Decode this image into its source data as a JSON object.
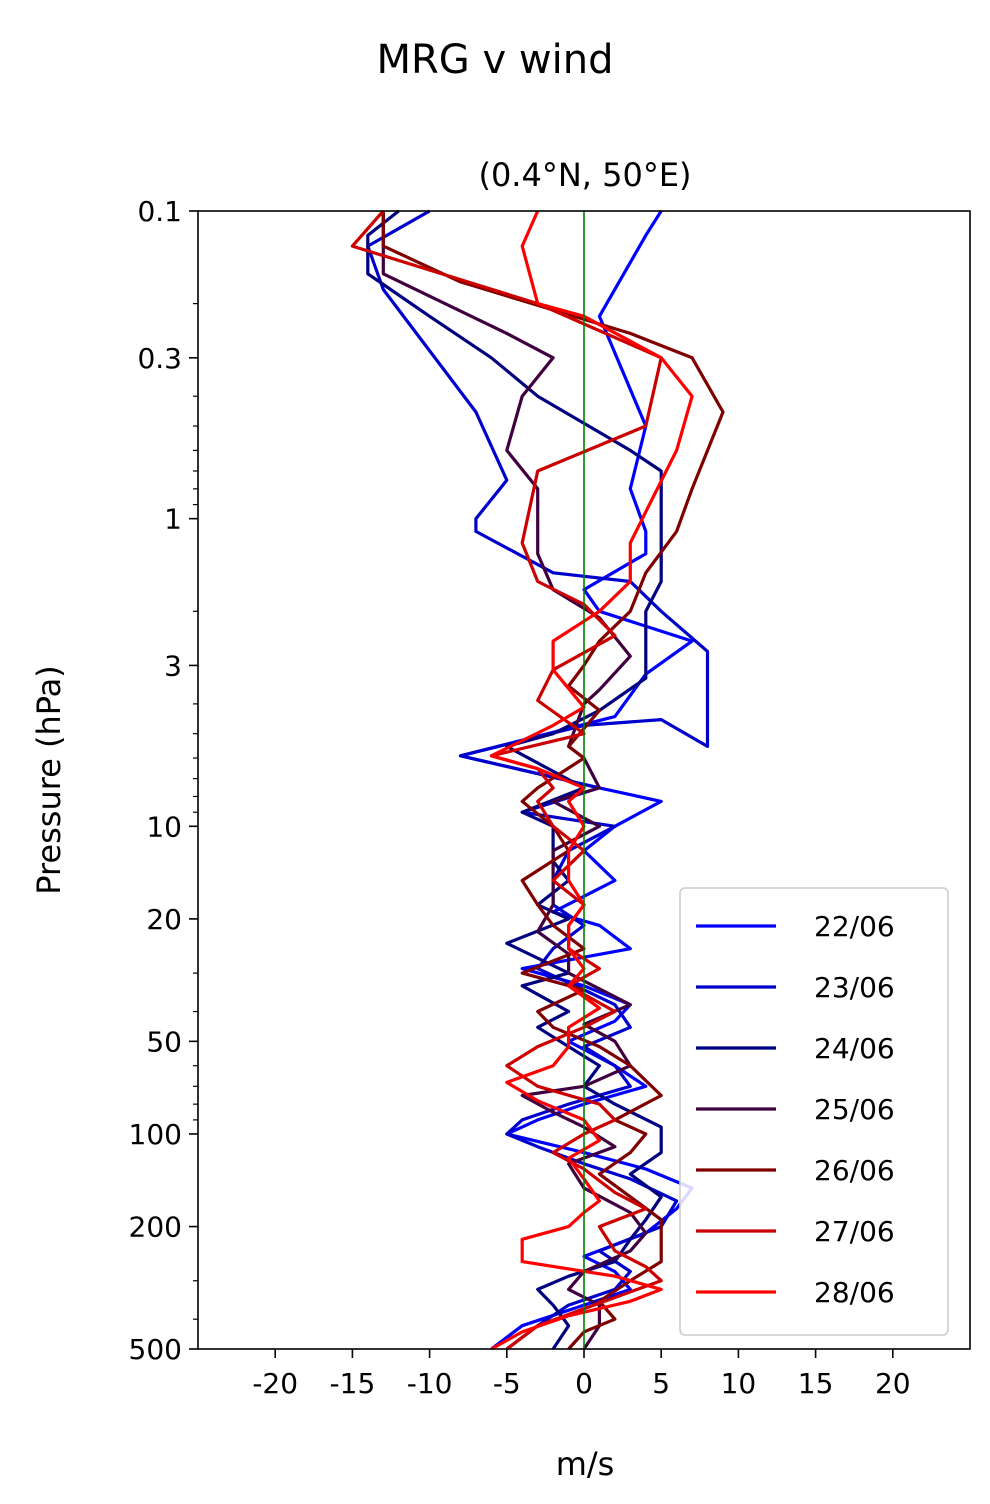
{
  "figure": {
    "suptitle": "MRG v wind",
    "subtitle": "(0.4°N, 50°E)"
  },
  "chart_data": {
    "type": "line",
    "title": "(0.4°N, 50°E)",
    "xlabel": "m/s",
    "ylabel": "Pressure (hPa)",
    "xlim": [
      -25,
      25
    ],
    "ylim": [
      500,
      0.1
    ],
    "y_scale": "log",
    "x_ticks": [
      -20,
      -15,
      -10,
      -5,
      0,
      5,
      10,
      15,
      20
    ],
    "x_tick_labels": [
      "-20",
      "-15",
      "-10",
      "-5",
      "0",
      "5",
      "10",
      "15",
      "20"
    ],
    "y_ticks": [
      0.1,
      0.3,
      1,
      3,
      10,
      20,
      50,
      100,
      200,
      500
    ],
    "y_tick_labels": [
      "0.1",
      "0.3",
      "1",
      "3",
      "10",
      "20",
      "50",
      "100",
      "200",
      "500"
    ],
    "zero_line_color": "#008000",
    "legend": "lower-right",
    "grid": false,
    "series": [
      {
        "name": "22/06",
        "color": "#0000ff",
        "points": [
          [
            -6,
            500
          ],
          [
            -4,
            420
          ],
          [
            0,
            360
          ],
          [
            3,
            320
          ],
          [
            2,
            280
          ],
          [
            0,
            250
          ],
          [
            4,
            210
          ],
          [
            6,
            175
          ],
          [
            7,
            150
          ],
          [
            4,
            130
          ],
          [
            0,
            115
          ],
          [
            -5,
            100
          ],
          [
            -3,
            90
          ],
          [
            0,
            80
          ],
          [
            4,
            70
          ],
          [
            2,
            60
          ],
          [
            -1,
            50
          ],
          [
            2,
            43
          ],
          [
            3,
            38
          ],
          [
            0,
            33
          ],
          [
            -4,
            29
          ],
          [
            3,
            25
          ],
          [
            1,
            21
          ],
          [
            -2,
            19
          ],
          [
            2,
            15
          ],
          [
            0,
            12
          ],
          [
            2,
            10
          ],
          [
            5,
            8.3
          ],
          [
            1,
            7.5
          ],
          [
            -8,
            5.9
          ],
          [
            2,
            4.4
          ],
          [
            4,
            3.2
          ],
          [
            7,
            2.5
          ],
          [
            1,
            2.0
          ],
          [
            0,
            1.7
          ],
          [
            4,
            1.3
          ],
          [
            4,
            1.1
          ],
          [
            3,
            0.8
          ],
          [
            4,
            0.5
          ],
          [
            1,
            0.22
          ],
          [
            4,
            0.12
          ],
          [
            5,
            0.1
          ]
        ]
      },
      {
        "name": "23/06",
        "color": "#0000cc",
        "points": [
          [
            -5,
            500
          ],
          [
            -3,
            420
          ],
          [
            -1,
            360
          ],
          [
            2,
            320
          ],
          [
            3,
            280
          ],
          [
            1,
            240
          ],
          [
            5,
            200
          ],
          [
            6,
            165
          ],
          [
            3,
            140
          ],
          [
            0,
            125
          ],
          [
            -3,
            110
          ],
          [
            -5,
            100
          ],
          [
            -4,
            90
          ],
          [
            -1,
            80
          ],
          [
            3,
            70
          ],
          [
            2,
            60
          ],
          [
            0,
            52
          ],
          [
            3,
            45
          ],
          [
            2,
            38
          ],
          [
            0,
            34
          ],
          [
            -3,
            29
          ],
          [
            -2,
            25
          ],
          [
            0,
            21
          ],
          [
            -2,
            18
          ],
          [
            -2,
            15
          ],
          [
            -1,
            12
          ],
          [
            2,
            10
          ],
          [
            -4,
            9
          ],
          [
            1,
            7.5
          ],
          [
            -8,
            5.9
          ],
          [
            0,
            4.7
          ],
          [
            5,
            4.5
          ],
          [
            8,
            5.5
          ],
          [
            8,
            2.7
          ],
          [
            5,
            2.0
          ],
          [
            3,
            1.6
          ],
          [
            -2,
            1.5
          ],
          [
            -7,
            1.1
          ],
          [
            -7,
            1.0
          ],
          [
            -5,
            0.75
          ],
          [
            -7,
            0.45
          ],
          [
            -13,
            0.18
          ],
          [
            -14,
            0.13
          ],
          [
            -10,
            0.1
          ]
        ]
      },
      {
        "name": "24/06",
        "color": "#000080",
        "points": [
          [
            -2,
            500
          ],
          [
            -1,
            420
          ],
          [
            -2,
            360
          ],
          [
            -3,
            320
          ],
          [
            -1,
            290
          ],
          [
            2,
            260
          ],
          [
            3,
            220
          ],
          [
            4,
            190
          ],
          [
            5,
            160
          ],
          [
            3,
            135
          ],
          [
            5,
            115
          ],
          [
            5,
            95
          ],
          [
            2,
            80
          ],
          [
            0,
            70
          ],
          [
            1,
            60
          ],
          [
            -1,
            52
          ],
          [
            -3,
            45
          ],
          [
            -1,
            40
          ],
          [
            -4,
            33
          ],
          [
            -1,
            30
          ],
          [
            -5,
            24
          ],
          [
            -1,
            20
          ],
          [
            -3,
            18
          ],
          [
            -1,
            15
          ],
          [
            -2,
            13
          ],
          [
            -2,
            10
          ],
          [
            -4,
            9
          ],
          [
            0,
            7.5
          ],
          [
            -5,
            5.5
          ],
          [
            -2,
            5
          ],
          [
            1,
            4.2
          ],
          [
            4,
            3.3
          ],
          [
            4,
            2.5
          ],
          [
            4,
            2.0
          ],
          [
            5,
            1.6
          ],
          [
            5,
            1.0
          ],
          [
            5,
            0.7
          ],
          [
            3,
            0.6
          ],
          [
            -3,
            0.4
          ],
          [
            -6,
            0.3
          ],
          [
            -10,
            0.22
          ],
          [
            -14,
            0.16
          ],
          [
            -14,
            0.12
          ],
          [
            -12,
            0.1
          ]
        ]
      },
      {
        "name": "25/06",
        "color": "#400040",
        "points": [
          [
            0,
            500
          ],
          [
            1,
            420
          ],
          [
            1,
            360
          ],
          [
            -1,
            320
          ],
          [
            0,
            280
          ],
          [
            3,
            240
          ],
          [
            4,
            210
          ],
          [
            3,
            180
          ],
          [
            0,
            150
          ],
          [
            -1,
            125
          ],
          [
            2,
            110
          ],
          [
            0,
            95
          ],
          [
            -2,
            85
          ],
          [
            -4,
            75
          ],
          [
            0,
            70
          ],
          [
            3,
            60
          ],
          [
            2,
            50
          ],
          [
            0,
            44
          ],
          [
            3,
            38
          ],
          [
            -1,
            30
          ],
          [
            -1,
            26
          ],
          [
            -3,
            22
          ],
          [
            -2,
            18
          ],
          [
            -2,
            15
          ],
          [
            -2,
            12
          ],
          [
            1,
            10
          ],
          [
            -2,
            8.3
          ],
          [
            1,
            7.5
          ],
          [
            0,
            6
          ],
          [
            -1,
            5.5
          ],
          [
            0,
            4
          ],
          [
            1,
            3.6
          ],
          [
            3,
            2.8
          ],
          [
            1,
            2.1
          ],
          [
            -2,
            1.7
          ],
          [
            -3,
            1.3
          ],
          [
            -3,
            0.8
          ],
          [
            -5,
            0.6
          ],
          [
            -4,
            0.4
          ],
          [
            -2,
            0.3
          ],
          [
            -5,
            0.25
          ],
          [
            -13,
            0.16
          ],
          [
            -13,
            0.12
          ],
          [
            -13,
            0.1
          ]
        ]
      },
      {
        "name": "26/06",
        "color": "#800000",
        "points": [
          [
            -1,
            500
          ],
          [
            0,
            440
          ],
          [
            2,
            400
          ],
          [
            1,
            350
          ],
          [
            3,
            300
          ],
          [
            5,
            260
          ],
          [
            5,
            220
          ],
          [
            5,
            190
          ],
          [
            3,
            160
          ],
          [
            1,
            135
          ],
          [
            3,
            115
          ],
          [
            4,
            100
          ],
          [
            2,
            90
          ],
          [
            5,
            75
          ],
          [
            3,
            60
          ],
          [
            1,
            52
          ],
          [
            -2,
            45
          ],
          [
            -3,
            40
          ],
          [
            0,
            34
          ],
          [
            -4,
            30
          ],
          [
            0,
            25
          ],
          [
            -2,
            21
          ],
          [
            -3,
            18
          ],
          [
            -4,
            15
          ],
          [
            -1,
            12
          ],
          [
            -2,
            10
          ],
          [
            -4,
            8.3
          ],
          [
            -3,
            7.5
          ],
          [
            0,
            6
          ],
          [
            -1,
            5.5
          ],
          [
            1,
            4.2
          ],
          [
            -1,
            3.5
          ],
          [
            0,
            3.0
          ],
          [
            1,
            2.5
          ],
          [
            3,
            2
          ],
          [
            4,
            1.5
          ],
          [
            6,
            1.1
          ],
          [
            7,
            0.8
          ],
          [
            9,
            0.45
          ],
          [
            7,
            0.3
          ],
          [
            3,
            0.25
          ],
          [
            -8,
            0.17
          ],
          [
            -13,
            0.13
          ],
          [
            -13,
            0.1
          ]
        ]
      },
      {
        "name": "27/06",
        "color": "#cc0000",
        "points": [
          [
            -5,
            500
          ],
          [
            -3,
            420
          ],
          [
            0,
            370
          ],
          [
            2,
            340
          ],
          [
            5,
            300
          ],
          [
            4,
            270
          ],
          [
            2,
            240
          ],
          [
            1,
            200
          ],
          [
            4,
            175
          ],
          [
            2,
            155
          ],
          [
            0,
            130
          ],
          [
            -2,
            115
          ],
          [
            0,
            100
          ],
          [
            2,
            90
          ],
          [
            1,
            80
          ],
          [
            -3,
            70
          ],
          [
            -5,
            60
          ],
          [
            -3,
            52
          ],
          [
            0,
            45
          ],
          [
            2,
            40
          ],
          [
            -1,
            33
          ],
          [
            1,
            29
          ],
          [
            -1,
            25
          ],
          [
            -1,
            21
          ],
          [
            0,
            18
          ],
          [
            -2,
            15
          ],
          [
            0,
            12
          ],
          [
            -2,
            10
          ],
          [
            -3,
            8.3
          ],
          [
            -2,
            7.5
          ],
          [
            -3,
            6.5
          ],
          [
            -6,
            5.9
          ],
          [
            0,
            5
          ],
          [
            -3,
            3.9
          ],
          [
            -2,
            3.1
          ],
          [
            2,
            2.4
          ],
          [
            0,
            1.9
          ],
          [
            -3,
            1.6
          ],
          [
            -4,
            1.2
          ],
          [
            -3,
            0.7
          ],
          [
            4,
            0.5
          ],
          [
            5,
            0.3
          ],
          [
            -3,
            0.2
          ],
          [
            -15,
            0.13
          ],
          [
            -13,
            0.1
          ]
        ]
      },
      {
        "name": "28/06",
        "color": "#ff0000",
        "points": [
          [
            -6,
            500
          ],
          [
            -4,
            440
          ],
          [
            -1,
            390
          ],
          [
            3,
            350
          ],
          [
            5,
            320
          ],
          [
            2,
            290
          ],
          [
            -4,
            260
          ],
          [
            -4,
            220
          ],
          [
            -1,
            200
          ],
          [
            0,
            180
          ],
          [
            1,
            165
          ],
          [
            0,
            140
          ],
          [
            -1,
            120
          ],
          [
            1,
            105
          ],
          [
            0,
            90
          ],
          [
            -3,
            78
          ],
          [
            -5,
            68
          ],
          [
            -2,
            60
          ],
          [
            -1,
            52
          ],
          [
            -1,
            45
          ],
          [
            1,
            39
          ],
          [
            -1,
            33
          ],
          [
            0,
            29
          ],
          [
            -1,
            25
          ],
          [
            -1,
            21
          ],
          [
            0,
            18
          ],
          [
            -1,
            15
          ],
          [
            -1,
            12
          ],
          [
            0,
            10
          ],
          [
            -1,
            8.3
          ],
          [
            0,
            7.5
          ],
          [
            -3,
            6.5
          ],
          [
            -6,
            5.9
          ],
          [
            -2,
            4.7
          ],
          [
            0,
            4.1
          ],
          [
            -2,
            3.1
          ],
          [
            -2,
            2.5
          ],
          [
            1,
            2.0
          ],
          [
            3,
            1.6
          ],
          [
            3,
            1.2
          ],
          [
            4,
            0.95
          ],
          [
            6,
            0.6
          ],
          [
            7,
            0.4
          ],
          [
            5,
            0.3
          ],
          [
            0,
            0.22
          ],
          [
            -3,
            0.2
          ],
          [
            -4,
            0.13
          ],
          [
            -3,
            0.1
          ]
        ]
      }
    ]
  }
}
